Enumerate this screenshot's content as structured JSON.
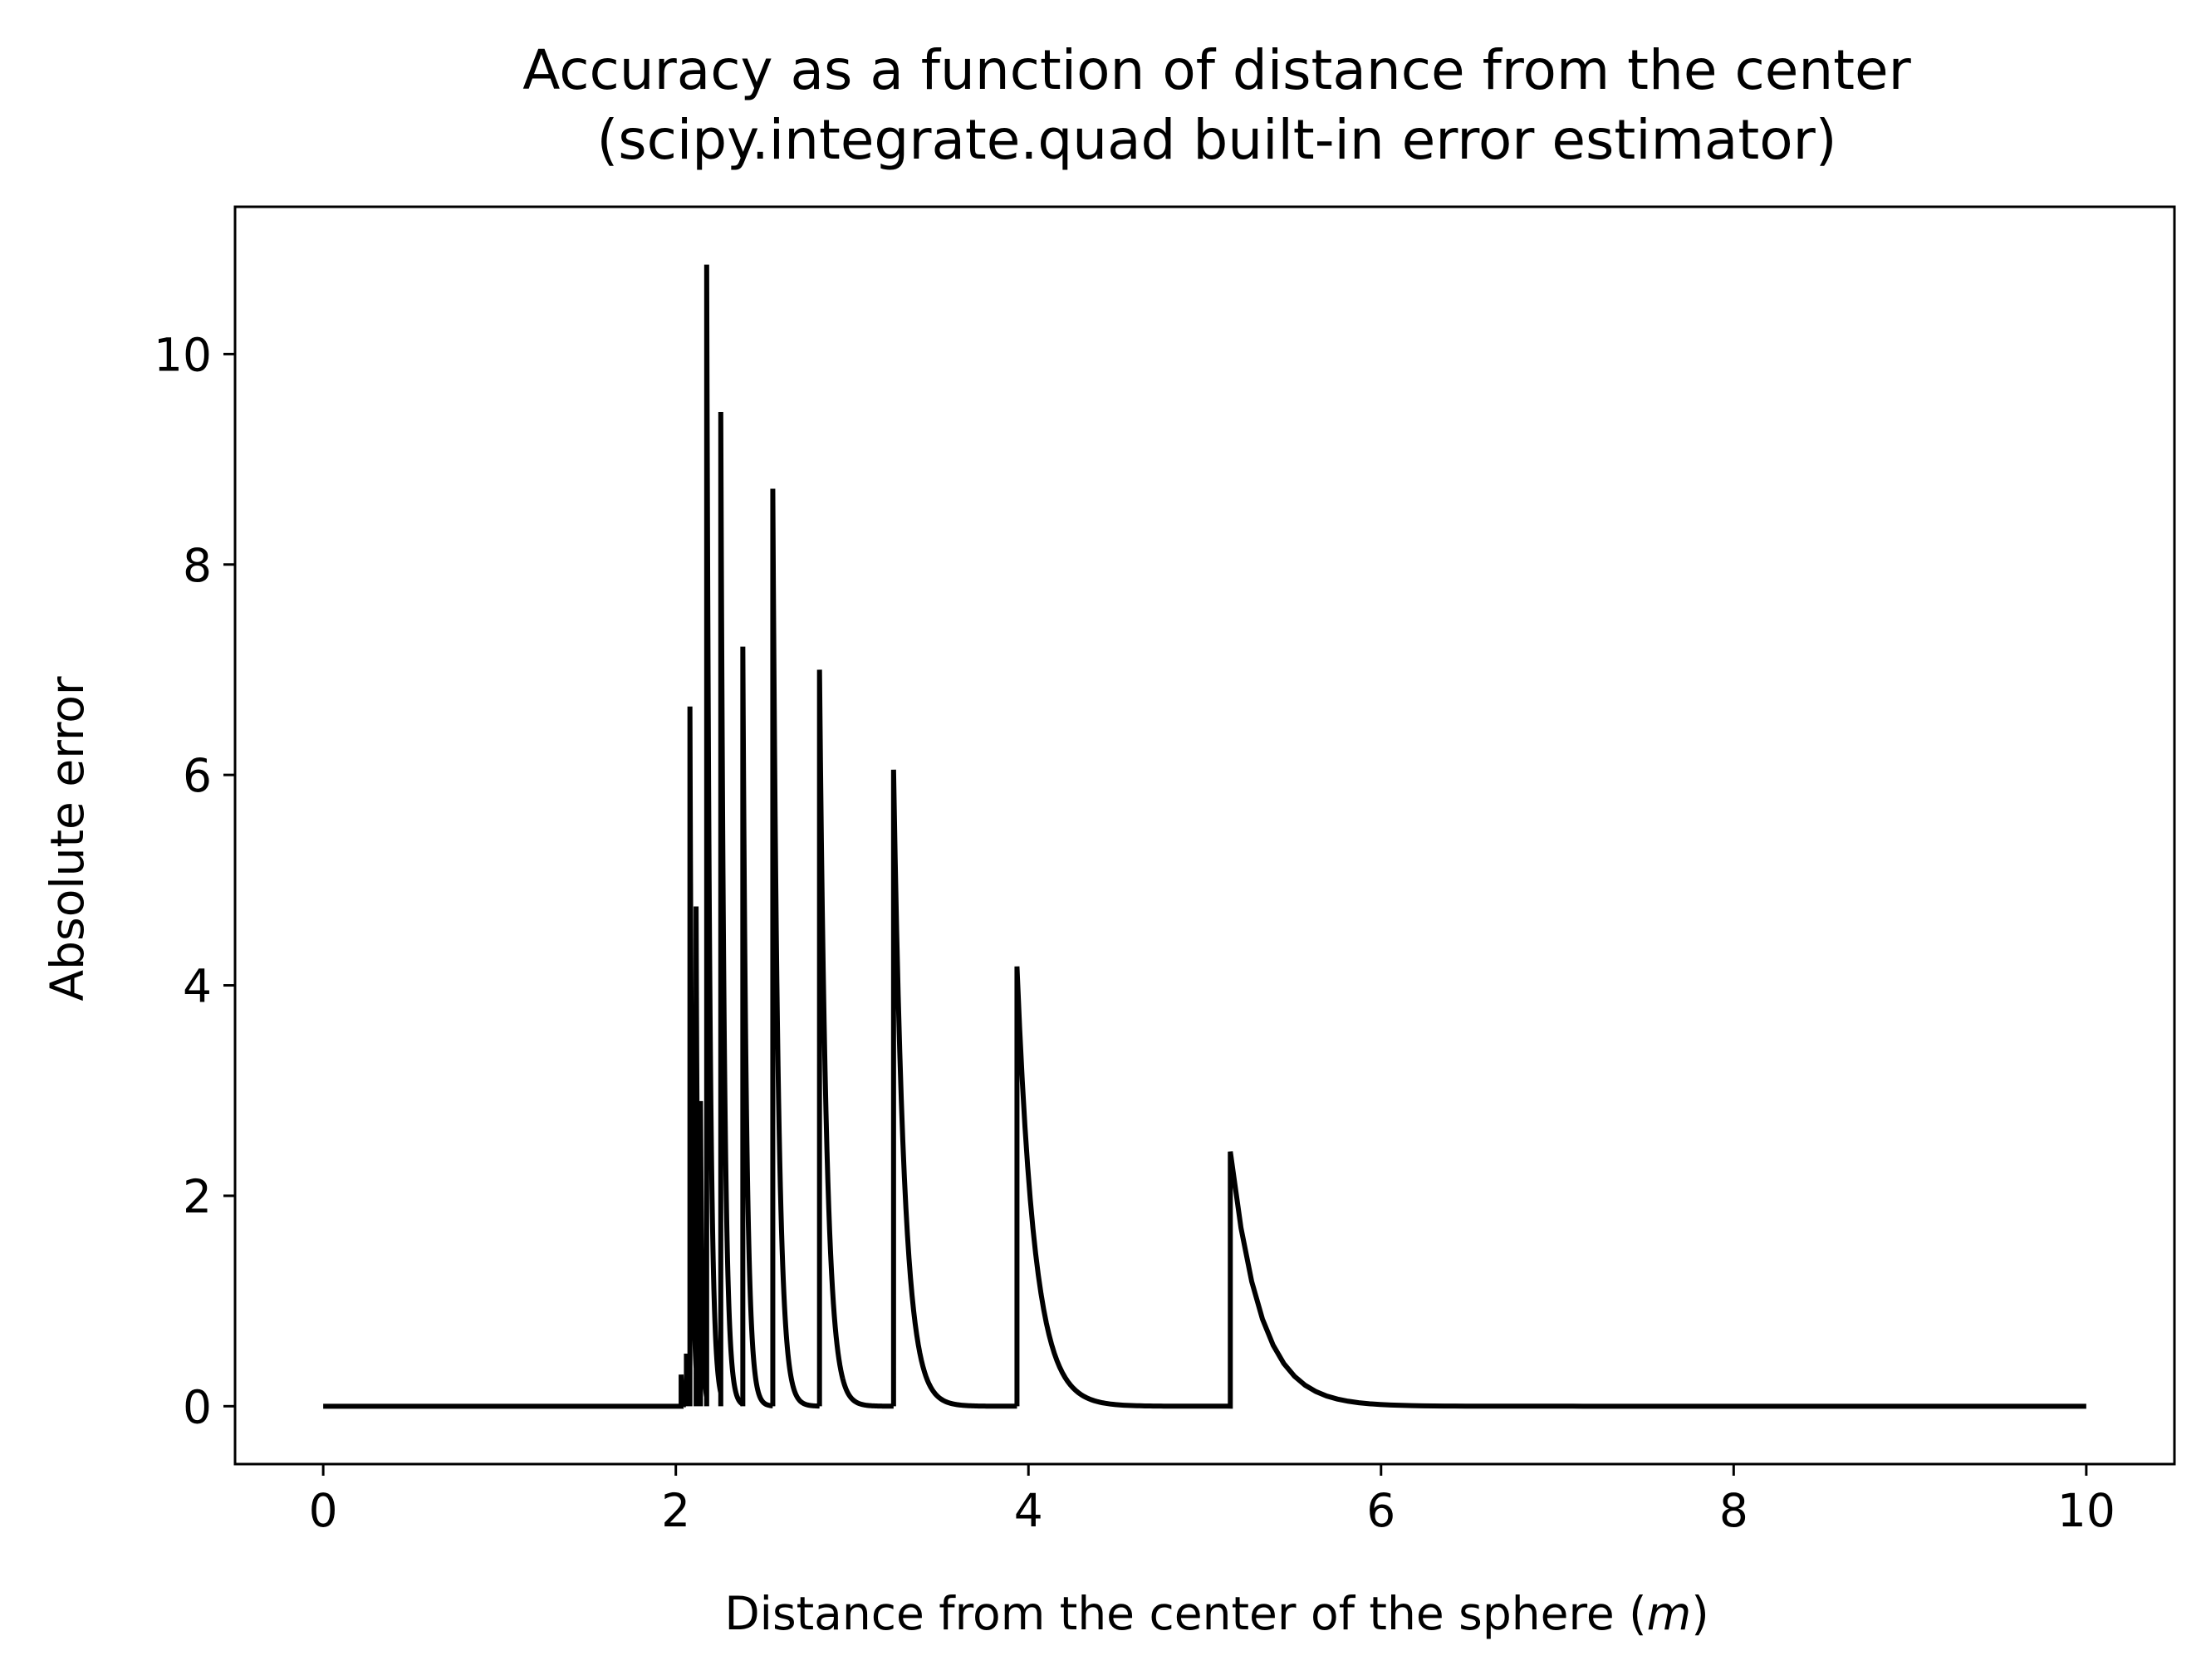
{
  "chart_data": {
    "type": "line",
    "title_lines": [
      "Accuracy as a function of distance from the center",
      "(scipy.integrate.quad built-in error estimator)"
    ],
    "xlabel_prefix": "Distance from the center of the sphere (",
    "xlabel_unit": "m",
    "xlabel_suffix": ")",
    "ylabel": "Absolute error",
    "xlim": [
      -0.5,
      10.5
    ],
    "ylim": [
      -0.55,
      11.4
    ],
    "xticks": [
      0,
      2,
      4,
      6,
      8,
      10
    ],
    "xtick_labels": [
      "0",
      "2",
      "4",
      "6",
      "8",
      "10"
    ],
    "yticks": [
      0,
      2,
      4,
      6,
      8,
      10
    ],
    "ytick_labels": [
      "0",
      "2",
      "4",
      "6",
      "8",
      "10"
    ],
    "grid": false,
    "legend": "none",
    "line_color": "#000000",
    "x_range": [
      0,
      10
    ],
    "baseline": 0,
    "spikes": [
      {
        "x": 2.03,
        "peak": 0.3,
        "decay": 0.008
      },
      {
        "x": 2.06,
        "peak": 0.5,
        "decay": 0.008
      },
      {
        "x": 2.08,
        "peak": 6.65,
        "decay": 0.012
      },
      {
        "x": 2.115,
        "peak": 4.75,
        "decay": 0.01
      },
      {
        "x": 2.14,
        "peak": 2.9,
        "decay": 0.01
      },
      {
        "x": 2.175,
        "peak": 10.85,
        "decay": 0.018
      },
      {
        "x": 2.255,
        "peak": 9.45,
        "decay": 0.02
      },
      {
        "x": 2.38,
        "peak": 7.22,
        "decay": 0.022
      },
      {
        "x": 2.55,
        "peak": 8.72,
        "decay": 0.03
      },
      {
        "x": 2.815,
        "peak": 7.0,
        "decay": 0.04
      },
      {
        "x": 3.235,
        "peak": 6.05,
        "decay": 0.06
      },
      {
        "x": 3.935,
        "peak": 4.18,
        "decay": 0.1
      },
      {
        "x": 5.145,
        "peak": 2.42,
        "decay": 0.17
      }
    ]
  }
}
